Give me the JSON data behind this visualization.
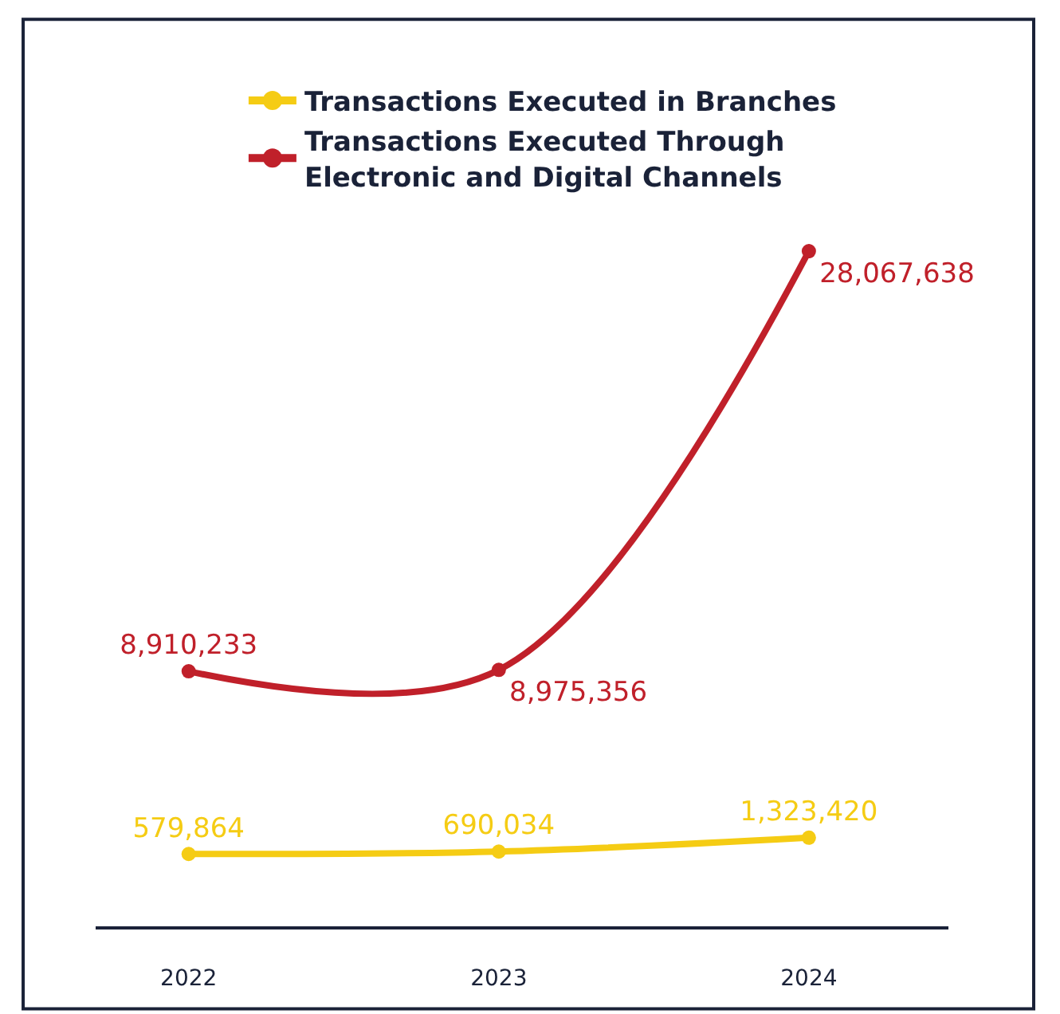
{
  "chart_data": {
    "type": "line",
    "categories": [
      "2022",
      "2023",
      "2024"
    ],
    "series": [
      {
        "name": "Transactions Executed in Branches",
        "color": "#f5cc14",
        "values": [
          579864,
          690034,
          1323420
        ],
        "value_labels": [
          "579,864",
          "690,034",
          "1,323,420"
        ]
      },
      {
        "name": "Transactions Executed Through Electronic and Digital Channels",
        "color": "#c0202a",
        "values": [
          8910233,
          8975356,
          28067638
        ],
        "value_labels": [
          "8,910,233",
          "8,975,356",
          "28,067,638"
        ]
      }
    ],
    "legend": "top",
    "marker": "circle",
    "line_style": "solid",
    "tick_labels": "x"
  }
}
